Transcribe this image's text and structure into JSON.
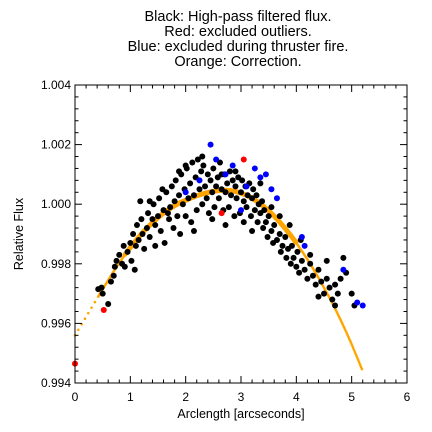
{
  "chart_data": {
    "type": "scatter",
    "title_lines": [
      "Black: High-pass filtered flux.",
      "Red: excluded outliers.",
      "Blue: excluded during thruster fire.",
      "Orange: Correction."
    ],
    "xlabel": "Arclength [arcseconds]",
    "ylabel": "Relative Flux",
    "xlim": [
      0,
      6
    ],
    "ylim": [
      0.994,
      1.004
    ],
    "x_ticks": [
      0,
      1,
      2,
      3,
      4,
      5,
      6
    ],
    "x_tick_labels": [
      "0",
      "1",
      "2",
      "3",
      "4",
      "5",
      "6"
    ],
    "y_ticks": [
      0.994,
      0.996,
      0.998,
      1.0,
      1.002,
      1.004
    ],
    "y_tick_labels": [
      "0.994",
      "0.996",
      "0.998",
      "1.000",
      "1.002",
      "1.004"
    ],
    "grid": false,
    "series": [
      {
        "color": "#000000",
        "points": [
          [
            0.42,
            0.99715
          ],
          [
            0.48,
            0.9972
          ],
          [
            0.5,
            0.997
          ],
          [
            0.6,
            0.99665
          ],
          [
            0.65,
            0.9974
          ],
          [
            0.7,
            0.9976
          ],
          [
            0.72,
            0.9979
          ],
          [
            0.75,
            0.9981
          ],
          [
            0.8,
            0.9983
          ],
          [
            0.85,
            0.998
          ],
          [
            0.9,
            0.9979
          ],
          [
            0.95,
            0.9984
          ],
          [
            1.0,
            0.9987
          ],
          [
            1.02,
            0.9981
          ],
          [
            1.05,
            0.999
          ],
          [
            1.1,
            0.9986
          ],
          [
            1.12,
            0.9993
          ],
          [
            1.15,
            0.9988
          ],
          [
            1.2,
            0.9995
          ],
          [
            1.22,
            0.999
          ],
          [
            1.25,
            0.9985
          ],
          [
            1.3,
            0.9992
          ],
          [
            1.32,
            0.9997
          ],
          [
            1.35,
            0.9989
          ],
          [
            1.4,
            0.9995
          ],
          [
            1.42,
            1.0
          ],
          [
            1.45,
            0.9993
          ],
          [
            1.5,
            0.9996
          ],
          [
            1.52,
            1.0002
          ],
          [
            1.55,
            0.9991
          ],
          [
            1.6,
            0.9998
          ],
          [
            1.62,
            0.9987
          ],
          [
            1.65,
            1.0004
          ],
          [
            1.7,
            0.9995
          ],
          [
            1.72,
            0.9999
          ],
          [
            1.75,
            1.0006
          ],
          [
            1.78,
            0.9992
          ],
          [
            1.8,
            1.0001
          ],
          [
            1.82,
            1.0008
          ],
          [
            1.85,
            0.9996
          ],
          [
            1.88,
            1.0003
          ],
          [
            1.9,
            0.999
          ],
          [
            1.92,
            1.001
          ],
          [
            1.95,
            1.0
          ],
          [
            1.98,
            1.0005
          ],
          [
            2.0,
            0.9996
          ],
          [
            2.02,
            1.0012
          ],
          [
            2.05,
            1.0002
          ],
          [
            2.08,
            1.0007
          ],
          [
            2.1,
            0.9994
          ],
          [
            2.12,
            1.0014
          ],
          [
            2.15,
            1.0003
          ],
          [
            2.18,
            1.0009
          ],
          [
            2.2,
            0.9998
          ],
          [
            2.22,
            1.0015
          ],
          [
            2.25,
            1.0005
          ],
          [
            2.28,
            1.0011
          ],
          [
            2.3,
            1.0
          ],
          [
            2.32,
            1.0013
          ],
          [
            2.35,
            1.0006
          ],
          [
            2.38,
            1.0002
          ],
          [
            2.4,
            1.001
          ],
          [
            2.42,
            0.9997
          ],
          [
            2.45,
            1.0008
          ],
          [
            2.48,
            1.0004
          ],
          [
            2.5,
            1.0012
          ],
          [
            2.52,
            0.9999
          ],
          [
            2.55,
            1.0006
          ],
          [
            2.58,
            1.0009
          ],
          [
            2.6,
            1.0002
          ],
          [
            2.62,
            1.0014
          ],
          [
            2.65,
            1.0005
          ],
          [
            2.68,
            0.9998
          ],
          [
            2.7,
            1.001
          ],
          [
            2.72,
            1.0004
          ],
          [
            2.75,
            1.0007
          ],
          [
            2.78,
            0.9999
          ],
          [
            2.8,
            1.0011
          ],
          [
            2.82,
            1.0003
          ],
          [
            2.85,
            1.0008
          ],
          [
            2.88,
            0.9996
          ],
          [
            2.9,
            1.0006
          ],
          [
            2.92,
            1.0002
          ],
          [
            2.95,
            1.0009
          ],
          [
            2.98,
            0.9997
          ],
          [
            3.0,
            1.0004
          ],
          [
            3.02,
            1.0008
          ],
          [
            3.05,
            1.0001
          ],
          [
            3.08,
            1.0006
          ],
          [
            3.1,
            0.9999
          ],
          [
            3.12,
            1.0003
          ],
          [
            3.15,
            1.0007
          ],
          [
            3.18,
            0.9996
          ],
          [
            3.2,
            1.0002
          ],
          [
            3.22,
            1.0005
          ],
          [
            3.25,
            0.9998
          ],
          [
            3.28,
            1.0003
          ],
          [
            3.3,
            0.9994
          ],
          [
            3.32,
            1.0
          ],
          [
            3.35,
            0.9997
          ],
          [
            3.38,
            1.0001
          ],
          [
            3.4,
            0.9992
          ],
          [
            3.42,
            0.9998
          ],
          [
            3.45,
            0.9994
          ],
          [
            3.48,
            0.9989
          ],
          [
            3.5,
            0.9996
          ],
          [
            3.55,
            0.9991
          ],
          [
            3.58,
            0.9987
          ],
          [
            3.6,
            0.9993
          ],
          [
            3.65,
            0.9988
          ],
          [
            3.7,
            0.999
          ],
          [
            3.72,
            0.9984
          ],
          [
            3.75,
            0.9986
          ],
          [
            3.8,
            0.9989
          ],
          [
            3.82,
            0.9982
          ],
          [
            3.85,
            0.9985
          ],
          [
            3.9,
            0.998
          ],
          [
            3.92,
            0.9986
          ],
          [
            3.95,
            0.9982
          ],
          [
            4.0,
            0.9979
          ],
          [
            4.02,
            0.9984
          ],
          [
            4.05,
            0.9977
          ],
          [
            4.1,
            0.9981
          ],
          [
            4.15,
            0.9978
          ],
          [
            4.2,
            0.9975
          ],
          [
            4.25,
            0.998
          ],
          [
            4.3,
            0.9976
          ],
          [
            4.35,
            0.9973
          ],
          [
            4.4,
            0.9978
          ],
          [
            4.45,
            0.9974
          ],
          [
            4.5,
            0.997
          ],
          [
            4.55,
            0.9975
          ],
          [
            4.6,
            0.9972
          ],
          [
            4.65,
            0.9968
          ],
          [
            4.7,
            0.9973
          ],
          [
            4.75,
            0.997
          ],
          [
            4.8,
            0.9975
          ],
          [
            4.85,
            0.9982
          ],
          [
            4.9,
            0.9977
          ],
          [
            5.0,
            0.997
          ],
          [
            5.05,
            0.9966
          ],
          [
            1.35,
            1.0001
          ],
          [
            1.45,
            0.9986
          ],
          [
            1.58,
            1.0005
          ],
          [
            1.68,
            0.9997
          ],
          [
            1.88,
            1.0011
          ],
          [
            2.0,
            1.0013
          ],
          [
            2.15,
            0.9991
          ],
          [
            2.3,
            1.0016
          ],
          [
            2.48,
            0.9995
          ],
          [
            2.65,
            1.001
          ],
          [
            2.72,
            0.9993
          ],
          [
            2.9,
            1.0011
          ],
          [
            3.05,
            0.9994
          ],
          [
            3.2,
            0.9991
          ],
          [
            3.35,
            1.0007
          ],
          [
            3.55,
            0.9999
          ],
          [
            3.7,
            0.9996
          ],
          [
            3.88,
            0.9993
          ],
          [
            4.08,
            0.9988
          ],
          [
            4.25,
            0.9983
          ],
          [
            4.4,
            0.9969
          ],
          [
            4.55,
            0.9981
          ],
          [
            4.7,
            0.9966
          ],
          [
            0.88,
            0.9986
          ],
          [
            1.08,
            0.9978
          ],
          [
            1.18,
            1.0001
          ]
        ]
      },
      {
        "color": "#ff0000",
        "points": [
          [
            0.0,
            0.99465
          ],
          [
            0.52,
            0.99645
          ],
          [
            2.65,
            0.9997
          ],
          [
            3.05,
            1.0015
          ]
        ]
      },
      {
        "color": "#0000ff",
        "points": [
          [
            2.0,
            1.0004
          ],
          [
            2.25,
            1.0008
          ],
          [
            2.45,
            1.002
          ],
          [
            2.55,
            1.0015
          ],
          [
            2.72,
            1.001
          ],
          [
            2.85,
            1.0013
          ],
          [
            3.0,
            0.9998
          ],
          [
            3.1,
            1.0006
          ],
          [
            3.25,
            1.0012
          ],
          [
            3.35,
            1.0009
          ],
          [
            3.45,
            1.001
          ],
          [
            3.55,
            1.0005
          ],
          [
            3.65,
            1.0002
          ],
          [
            4.1,
            0.9989
          ],
          [
            4.15,
            0.9986
          ],
          [
            4.85,
            0.9978
          ],
          [
            5.1,
            0.9967
          ],
          [
            5.2,
            0.9966
          ]
        ]
      }
    ],
    "correction_curve": {
      "color": "#ffa500",
      "x": [
        0.0,
        0.42,
        0.5,
        0.6,
        0.7,
        0.8,
        0.9,
        1.0,
        1.1,
        1.2,
        1.3,
        1.4,
        1.5,
        1.6,
        1.7,
        1.8,
        1.9,
        2.0,
        2.1,
        2.2,
        2.3,
        2.4,
        2.5,
        2.6,
        2.7,
        2.8,
        2.9,
        3.0,
        3.1,
        3.2,
        3.3,
        3.4,
        3.5,
        3.6,
        3.7,
        3.8,
        3.9,
        4.0,
        4.1,
        4.2,
        4.3,
        4.4,
        4.5,
        4.6,
        4.7,
        4.8,
        4.9,
        5.0,
        5.1,
        5.2
      ],
      "y": [
        0.9956,
        0.9969,
        0.99715,
        0.99745,
        0.99775,
        0.99803,
        0.9983,
        0.99855,
        0.99878,
        0.999,
        0.9992,
        0.99938,
        0.99955,
        0.9997,
        0.99983,
        0.99995,
        1.00005,
        1.00013,
        1.00021,
        1.00028,
        1.00034,
        1.00039,
        1.00043,
        1.00046,
        1.00047,
        1.00046,
        1.00043,
        1.00037,
        1.0003,
        1.0002,
        1.00008,
        0.99994,
        0.99978,
        0.9996,
        0.9994,
        0.99918,
        0.99895,
        0.9987,
        0.99843,
        0.99815,
        0.99785,
        0.99753,
        0.9972,
        0.99686,
        0.9965,
        0.99612,
        0.99572,
        0.9953,
        0.99485,
        0.9944
      ]
    }
  }
}
